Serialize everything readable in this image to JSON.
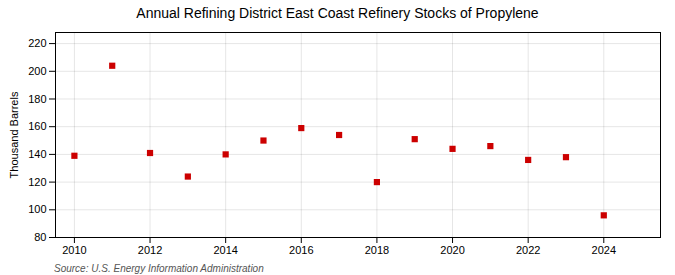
{
  "chart_data": {
    "type": "scatter",
    "title": "Annual Refining District East Coast Refinery Stocks of Propylene",
    "ylabel": "Thousand Barrels",
    "source": "Source: U.S. Energy Information Administration",
    "x": [
      2010,
      2011,
      2012,
      2013,
      2014,
      2015,
      2016,
      2017,
      2018,
      2019,
      2020,
      2021,
      2022,
      2023,
      2024
    ],
    "values": [
      139,
      204,
      141,
      124,
      140,
      150,
      159,
      154,
      120,
      151,
      144,
      146,
      136,
      138,
      96
    ],
    "color": "#cc0000",
    "marker": "square",
    "xlim": [
      2009.5,
      2025.5
    ],
    "ylim": [
      80,
      228
    ],
    "xticks": [
      2010,
      2012,
      2014,
      2016,
      2018,
      2020,
      2022,
      2024
    ],
    "yticks": [
      80,
      100,
      120,
      140,
      160,
      180,
      200,
      220
    ],
    "grid": true
  }
}
